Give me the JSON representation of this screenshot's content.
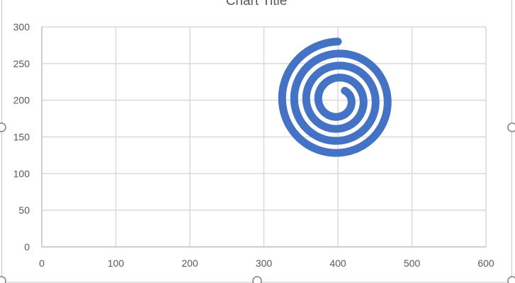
{
  "chart_data": {
    "type": "scatter",
    "title": "Chart Title",
    "xlabel": "",
    "ylabel": "",
    "xlim": [
      0,
      600
    ],
    "ylim": [
      0,
      300
    ],
    "x_ticks": [
      0,
      100,
      200,
      300,
      400,
      500,
      600
    ],
    "y_ticks": [
      0,
      50,
      100,
      150,
      200,
      250,
      300
    ],
    "x_tick_labels": [
      "0",
      "100",
      "200",
      "300",
      "400",
      "500",
      "600"
    ],
    "y_tick_labels": [
      "0",
      "50",
      "100",
      "150",
      "200",
      "250",
      "300"
    ],
    "grid": true,
    "legend": "none",
    "style": "smooth-line",
    "series": [
      {
        "color": "#4472C4",
        "shape": "spiral",
        "center": [
          400,
          200
        ],
        "start_angle_deg": 90,
        "turns": 3.9,
        "radius_start": 16,
        "radius_end": 80,
        "points_approx": [
          [
            400,
            280
          ],
          [
            440,
            268
          ],
          [
            468,
            240
          ],
          [
            482,
            200
          ],
          [
            470,
            158
          ],
          [
            440,
            128
          ],
          [
            400,
            120
          ],
          [
            360,
            130
          ],
          [
            334,
            160
          ],
          [
            330,
            200
          ],
          [
            342,
            236
          ],
          [
            370,
            258
          ],
          [
            400,
            262
          ],
          [
            436,
            250
          ],
          [
            456,
            222
          ],
          [
            460,
            190
          ],
          [
            446,
            160
          ],
          [
            420,
            142
          ],
          [
            400,
            140
          ],
          [
            372,
            150
          ],
          [
            356,
            176
          ],
          [
            358,
            210
          ],
          [
            376,
            232
          ],
          [
            400,
            238
          ],
          [
            424,
            228
          ],
          [
            436,
            200
          ],
          [
            430,
            176
          ],
          [
            412,
            162
          ],
          [
            392,
            162
          ],
          [
            376,
            178
          ],
          [
            376,
            202
          ],
          [
            388,
            218
          ],
          [
            400,
            220
          ],
          [
            414,
            212
          ],
          [
            418,
            196
          ],
          [
            408,
            184
          ],
          [
            394,
            184
          ],
          [
            386,
            196
          ],
          [
            392,
            206
          ]
        ]
      }
    ]
  }
}
